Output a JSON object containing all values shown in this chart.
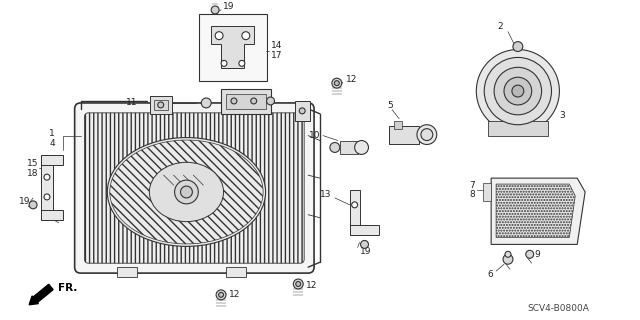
{
  "bg_color": "#ffffff",
  "diagram_code": "SCV4-B0800A",
  "line_color": "#333333",
  "text_color": "#222222",
  "font_size": 6.5,
  "figsize": [
    6.4,
    3.2
  ],
  "dpi": 100
}
